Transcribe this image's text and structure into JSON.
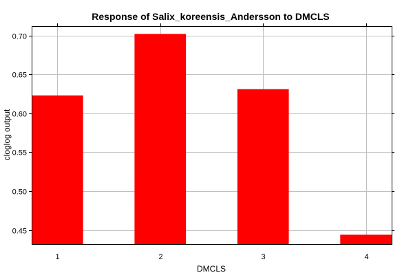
{
  "chart_data": {
    "type": "bar",
    "title": "Response of Salix_koreensis_Andersson to DMCLS",
    "xlabel": "DMCLS",
    "ylabel": "cloglog output",
    "categories": [
      "1",
      "2",
      "3",
      "4"
    ],
    "values": [
      0.623,
      0.702,
      0.631,
      0.444
    ],
    "ylim": [
      0.432,
      0.712
    ],
    "yticks": [
      0.45,
      0.5,
      0.55,
      0.6,
      0.65,
      0.7
    ],
    "ytick_labels": [
      "0.45",
      "0.50",
      "0.55",
      "0.60",
      "0.65",
      "0.70"
    ],
    "grid": true,
    "bar_color": "#ff0000",
    "grid_color": "#c0c0c0"
  }
}
